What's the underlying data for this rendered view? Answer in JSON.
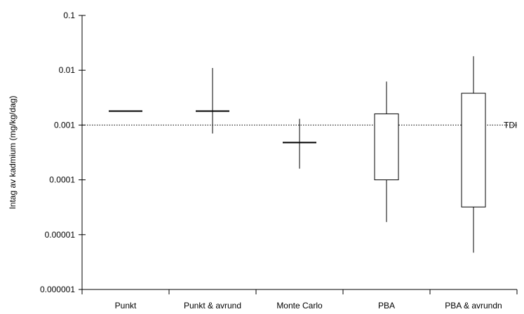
{
  "chart_data": {
    "type": "box",
    "title": "",
    "xlabel": "",
    "ylabel": "Intag av kadmium (mg/kg/dag)",
    "yscale": "log",
    "ylim": [
      1e-06,
      0.1
    ],
    "y_ticks": [
      0.1,
      0.01,
      0.001,
      0.0001,
      1e-05,
      1e-06
    ],
    "y_tick_labels": [
      "0.1",
      "0.01",
      "0.001",
      "0.0001",
      "0.00001",
      "0.000001"
    ],
    "grid": false,
    "legend": "none",
    "categories": [
      "Punkt",
      "Punkt & avrund",
      "Monte Carlo",
      "PBA",
      "PBA & avrundn"
    ],
    "items": [
      {
        "category": "Punkt",
        "kind": "point",
        "value": 0.0018
      },
      {
        "category": "Punkt & avrund",
        "kind": "point-range",
        "value": 0.0018,
        "low": 0.0007,
        "high": 0.011
      },
      {
        "category": "Monte Carlo",
        "kind": "point-range",
        "value": 0.00048,
        "low": 0.00016,
        "high": 0.0013
      },
      {
        "category": "PBA",
        "kind": "box",
        "low": 1.7e-05,
        "q1": 0.0001,
        "q3": 0.0016,
        "high": 0.0062
      },
      {
        "category": "PBA & avrundn",
        "kind": "box",
        "low": 4.7e-06,
        "q1": 3.2e-05,
        "q3": 0.0038,
        "high": 0.018
      }
    ],
    "reference_line": {
      "label": "TDI",
      "value": 0.001,
      "style": "dotted"
    },
    "colors": {
      "line": "#000000",
      "box_fill": "#ffffff",
      "background": "#ffffff"
    }
  }
}
